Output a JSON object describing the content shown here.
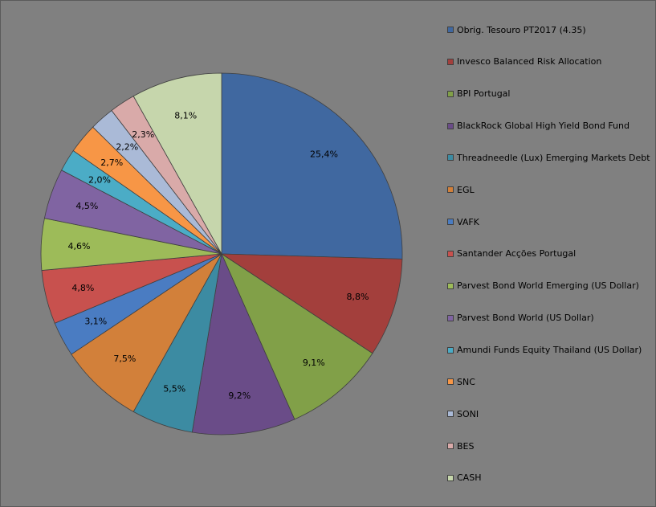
{
  "chart_data": {
    "type": "pie",
    "start": "top, clockwise",
    "legend_position": "right",
    "series": [
      {
        "name": "Obrig. Tesouro PT2017  (4.35)",
        "value": 25.4,
        "label": "25,4%",
        "color": "#4068A0"
      },
      {
        "name": "Invesco Balanced Risk Allocation",
        "value": 8.8,
        "label": "8,8%",
        "color": "#A33F3C"
      },
      {
        "name": "BPI Portugal",
        "value": 9.1,
        "label": "9,1%",
        "color": "#81A048"
      },
      {
        "name": "BlackRock Global High Yield Bond Fund",
        "value": 9.2,
        "label": "9,2%",
        "color": "#6A4C88"
      },
      {
        "name": "Threadneedle (Lux) Emerging Markets Debt",
        "value": 5.5,
        "label": "5,5%",
        "color": "#3C8BA2"
      },
      {
        "name": "EGL",
        "value": 7.5,
        "label": "7,5%",
        "color": "#D2803A"
      },
      {
        "name": "VAFK",
        "value": 3.1,
        "label": "3,1%",
        "color": "#4A7CC2"
      },
      {
        "name": "Santander Acções Portugal",
        "value": 4.8,
        "label": "4,8%",
        "color": "#C8514E"
      },
      {
        "name": "Parvest Bond World Emerging (US Dollar)",
        "value": 4.6,
        "label": "4,6%",
        "color": "#9DBB59"
      },
      {
        "name": "Parvest Bond World (US Dollar)",
        "value": 4.5,
        "label": "4,5%",
        "color": "#8064A2"
      },
      {
        "name": "Amundi Funds Equity Thailand (US Dollar)",
        "value": 2.0,
        "label": "2,0%",
        "color": "#4BACC6"
      },
      {
        "name": "SNC",
        "value": 2.7,
        "label": "2,7%",
        "color": "#F79646"
      },
      {
        "name": "SONI",
        "value": 2.2,
        "label": "2,2%",
        "color": "#AABAD7"
      },
      {
        "name": "BES",
        "value": 2.3,
        "label": "2,3%",
        "color": "#D9AAA9"
      },
      {
        "name": "CASH",
        "value": 8.1,
        "label": "8,1%",
        "color": "#C6D6AC"
      }
    ]
  }
}
